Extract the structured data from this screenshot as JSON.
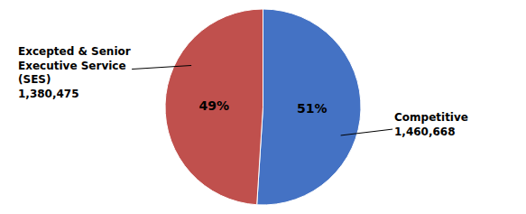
{
  "chart_data": {
    "type": "pie",
    "categories": [
      "Competitive\n1,460,668",
      "Excepted & Senior\nExecutive Service\n(SES)\n1,380,475"
    ],
    "values": [
      51,
      49
    ],
    "value_labels": [
      "51%",
      "49%"
    ],
    "colors": [
      "#4472C4",
      "#C0504D"
    ],
    "data_labels": true
  }
}
